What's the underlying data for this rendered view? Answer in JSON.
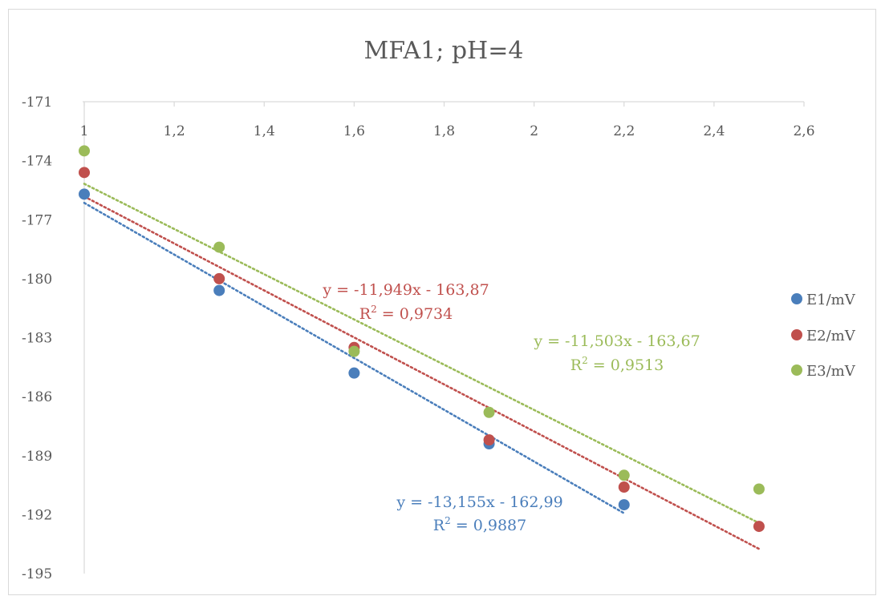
{
  "chart_data": {
    "type": "scatter",
    "title": "MFA1;  pH=4",
    "xlabel": "",
    "ylabel": "",
    "xlim": [
      1,
      2.6
    ],
    "ylim": [
      -195,
      -171
    ],
    "x_ticks": [
      1,
      1.2,
      1.4,
      1.6,
      1.8,
      2,
      2.2,
      2.4,
      2.6
    ],
    "x_tick_labels": [
      "1",
      "1,2",
      "1,4",
      "1,6",
      "1,8",
      "2",
      "2,2",
      "2,4",
      "2,6"
    ],
    "y_ticks": [
      -171,
      -174,
      -177,
      -180,
      -183,
      -186,
      -189,
      -192,
      -195
    ],
    "y_tick_labels": [
      "-171",
      "-174",
      "-177",
      "-180",
      "-183",
      "-186",
      "-189",
      "-192",
      "-195"
    ],
    "x_axis_position": "top",
    "grid": false,
    "legend_position": "right",
    "series": [
      {
        "name": "E1/mV",
        "color": "#4a7ebb",
        "x": [
          1,
          1.3,
          1.6,
          1.9,
          2.2
        ],
        "y": [
          -175.7,
          -180.6,
          -184.8,
          -188.4,
          -191.5
        ],
        "trendline": {
          "slope": -13.155,
          "intercept": -162.99,
          "x_range": [
            1,
            2.2
          ],
          "equation": "y = -13,155x - 162,99",
          "r2_prefix": "R",
          "r2_sup": "2",
          "r2_value": " = 0,9887"
        }
      },
      {
        "name": "E2/mV",
        "color": "#c0504d",
        "x": [
          1,
          1.3,
          1.6,
          1.9,
          2.2,
          2.5
        ],
        "y": [
          -174.6,
          -180.0,
          -183.5,
          -188.2,
          -190.6,
          -192.6
        ],
        "trendline": {
          "slope": -11.949,
          "intercept": -163.87,
          "x_range": [
            1,
            2.5
          ],
          "equation": "y = -11,949x - 163,87",
          "r2_prefix": "R",
          "r2_sup": "2",
          "r2_value": " = 0,9734"
        }
      },
      {
        "name": "E3/mV",
        "color": "#9bbb59",
        "x": [
          1,
          1.3,
          1.6,
          1.9,
          2.2,
          2.5
        ],
        "y": [
          -173.5,
          -178.4,
          -183.7,
          -186.8,
          -190.0,
          -190.7
        ],
        "trendline": {
          "slope": -11.503,
          "intercept": -163.67,
          "x_range": [
            1,
            2.5
          ],
          "equation": "y = -11,503x - 163,67",
          "r2_prefix": "R",
          "r2_sup": "2",
          "r2_value": " = 0,9513"
        }
      }
    ]
  }
}
